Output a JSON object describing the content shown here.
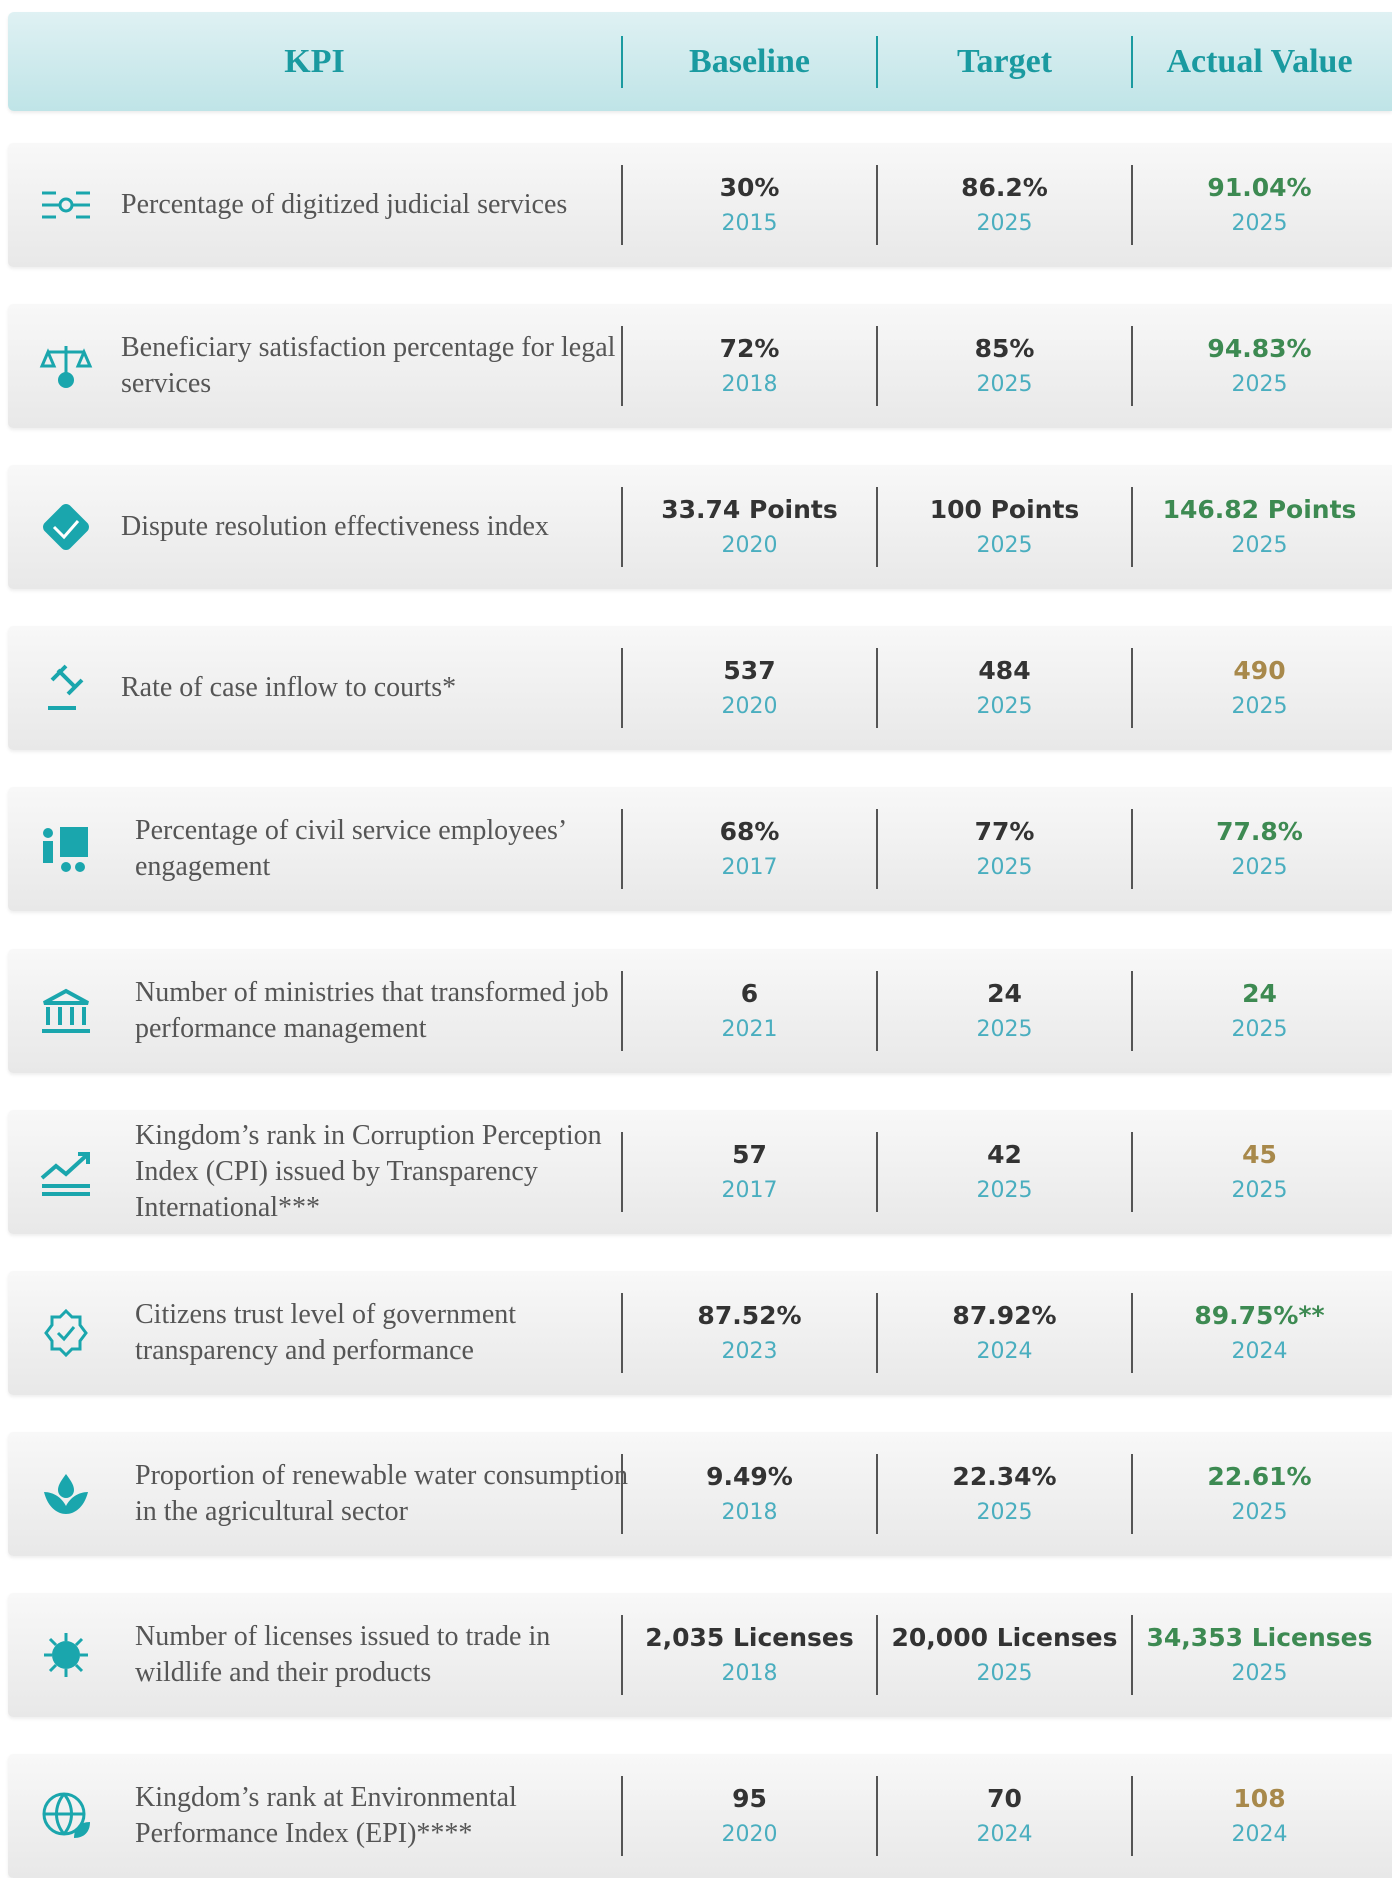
{
  "header": {
    "kpi": "KPI",
    "baseline": "Baseline",
    "target": "Target",
    "actual": "Actual Value"
  },
  "rows": [
    {
      "kpi": "Percentage of digitized judicial services",
      "baseline": {
        "value": "30%",
        "year": 2015
      },
      "target": {
        "value": "86.2%",
        "year": 2025
      },
      "actual": {
        "value": "91.04%",
        "year": 2025,
        "color": "#3d8a52"
      }
    },
    {
      "kpi": "Beneficiary satisfaction percentage for legal services",
      "baseline": {
        "value": "72%",
        "year": 2018
      },
      "target": {
        "value": "85%",
        "year": 2025
      },
      "actual": {
        "value": "94.83%",
        "year": 2025,
        "color": "#3d8a52"
      }
    },
    {
      "kpi": "Dispute resolution effectiveness index",
      "baseline": {
        "value": "33.74 Points",
        "year": 2020
      },
      "target": {
        "value": "100 Points",
        "year": 2025
      },
      "actual": {
        "value": "146.82 Points",
        "year": 2025,
        "color": "#3d8a52"
      }
    },
    {
      "kpi": "Rate of case inflow to courts*",
      "baseline": {
        "value": "537",
        "year": 2020
      },
      "target": {
        "value": "484",
        "year": 2025
      },
      "actual": {
        "value": "490",
        "year": 2025,
        "color": "#a8894b"
      }
    },
    {
      "kpi": "Percentage of civil service employees’ engagement",
      "baseline": {
        "value": "68%",
        "year": 2017
      },
      "target": {
        "value": "77%",
        "year": 2025
      },
      "actual": {
        "value": "77.8%",
        "year": 2025,
        "color": "#3d8a52"
      }
    },
    {
      "kpi": "Number of ministries that transformed job performance management",
      "baseline": {
        "value": "6",
        "year": 2021
      },
      "target": {
        "value": "24",
        "year": 2025
      },
      "actual": {
        "value": "24",
        "year": 2025,
        "color": "#3d8a52"
      }
    },
    {
      "kpi": "Kingdom’s rank in Corruption Perception Index (CPI) issued by Transparency International***",
      "baseline": {
        "value": "57",
        "year": 2017
      },
      "target": {
        "value": "42",
        "year": 2025
      },
      "actual": {
        "value": "45",
        "year": 2025,
        "color": "#a8894b"
      }
    },
    {
      "kpi": "Citizens trust level of government transparency and performance",
      "baseline": {
        "value": "87.52%",
        "year": 2023
      },
      "target": {
        "value": "87.92%",
        "year": 2024
      },
      "actual": {
        "value": "89.75%**",
        "year": 2024,
        "color": "#3d8a52"
      }
    },
    {
      "kpi": "Proportion of renewable water consumption in the agricultural sector",
      "baseline": {
        "value": "9.49%",
        "year": 2018
      },
      "target": {
        "value": "22.34%",
        "year": 2025
      },
      "actual": {
        "value": "22.61%",
        "year": 2025,
        "color": "#3d8a52"
      }
    },
    {
      "kpi": "Number of licenses issued to trade in wildlife and their products",
      "baseline": {
        "value": "2,035 Licenses",
        "year": 2018
      },
      "target": {
        "value": "20,000 Licenses",
        "year": 2025
      },
      "actual": {
        "value": "34,353 Licenses",
        "year": 2025,
        "color": "#3d8a52"
      }
    },
    {
      "kpi": "Kingdom’s rank at Environmental Performance Index (EPI)****",
      "baseline": {
        "value": "95",
        "year": 2020
      },
      "target": {
        "value": "70",
        "year": 2024
      },
      "actual": {
        "value": "108",
        "year": 2024,
        "color": "#a8894b"
      }
    }
  ]
}
